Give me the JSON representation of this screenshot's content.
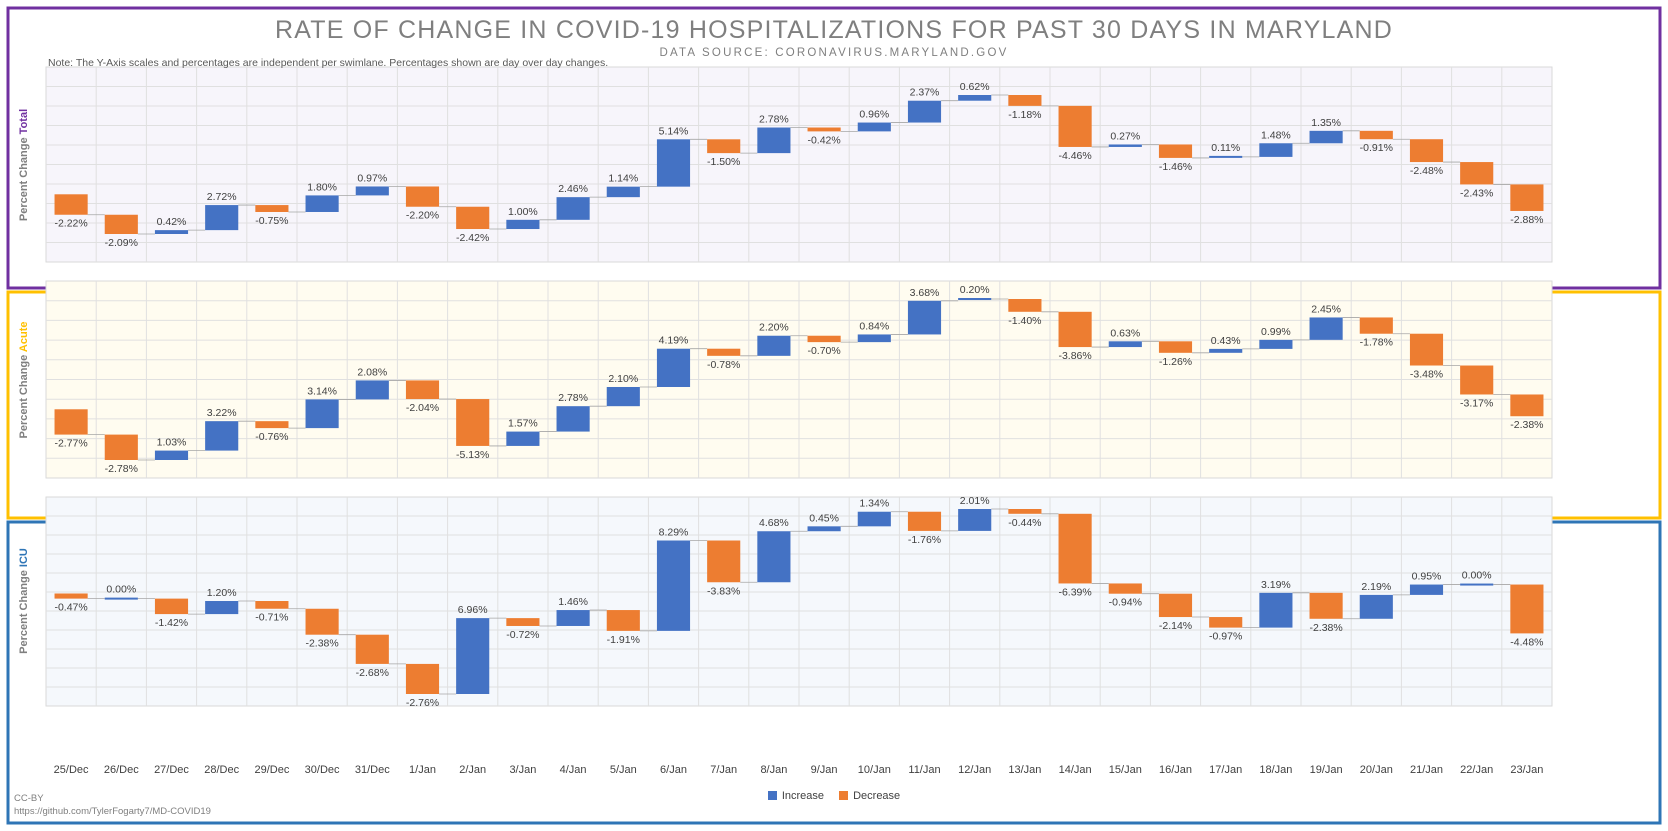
{
  "title": "RATE OF CHANGE IN COVID-19 HOSPITALIZATIONS FOR PAST 30 DAYS IN MARYLAND",
  "subtitle": "DATA SOURCE: CORONAVIRUS.MARYLAND.GOV",
  "note": "Note: The Y-Axis scales and percentages are independent per swimlane. Percentages shown are day over day changes.",
  "credit_line1": "CC-BY",
  "credit_line2": "https://github.com/TylerFogarty7/MD-COVID19",
  "colors": {
    "increase": "#4472c4",
    "decrease": "#ed7d31",
    "total_frame": "#7030a0",
    "acute_frame": "#ffc000",
    "icu_frame": "#2e75b6",
    "total_bg": "#f7f5fb",
    "acute_bg": "#fffcf0",
    "icu_bg": "#f5f8fc"
  },
  "legend": {
    "increase_label": "Increase",
    "decrease_label": "Decrease"
  },
  "chart_data": {
    "type": "waterfall",
    "title": "RATE OF CHANGE IN COVID-19 HOSPITALIZATIONS FOR PAST 30 DAYS IN MARYLAND",
    "categories": [
      "25/Dec",
      "26/Dec",
      "27/Dec",
      "28/Dec",
      "29/Dec",
      "30/Dec",
      "31/Dec",
      "1/Jan",
      "2/Jan",
      "3/Jan",
      "4/Jan",
      "5/Jan",
      "6/Jan",
      "7/Jan",
      "8/Jan",
      "9/Jan",
      "10/Jan",
      "11/Jan",
      "12/Jan",
      "13/Jan",
      "14/Jan",
      "15/Jan",
      "16/Jan",
      "17/Jan",
      "18/Jan",
      "19/Jan",
      "20/Jan",
      "21/Jan",
      "22/Jan",
      "23/Jan"
    ],
    "grid": true,
    "legend_position": "bottom-center",
    "panels": [
      {
        "name": "Total",
        "ylabel_prefix": "Percent Change",
        "ylabel_highlight": "Total",
        "values": [
          -2.22,
          -2.09,
          0.42,
          2.72,
          -0.75,
          1.8,
          0.97,
          -2.2,
          -2.42,
          1.0,
          2.46,
          1.14,
          5.14,
          -1.5,
          2.78,
          -0.42,
          0.96,
          2.37,
          0.62,
          -1.18,
          -4.46,
          0.27,
          -1.46,
          0.11,
          1.48,
          1.35,
          -0.91,
          -2.48,
          -2.43,
          -2.88
        ],
        "labels": [
          "-2.22%",
          "-2.09%",
          "0.42%",
          "2.72%",
          "-0.75%",
          "1.80%",
          "0.97%",
          "-2.20%",
          "-2.42%",
          "1.00%",
          "2.46%",
          "1.14%",
          "5.14%",
          "-1.50%",
          "2.78%",
          "-0.42%",
          "0.96%",
          "2.37%",
          "0.62%",
          "-1.18%",
          "-4.46%",
          "0.27%",
          "-1.46%",
          "0.11%",
          "1.48%",
          "1.35%",
          "-0.91%",
          "-2.48%",
          "-2.43%",
          "-2.88%"
        ]
      },
      {
        "name": "Acute",
        "ylabel_prefix": "Percent Change",
        "ylabel_highlight": "Acute",
        "values": [
          -2.77,
          -2.78,
          1.03,
          3.22,
          -0.76,
          3.14,
          2.08,
          -2.04,
          -5.13,
          1.57,
          2.78,
          2.1,
          4.19,
          -0.78,
          2.2,
          -0.7,
          0.84,
          3.68,
          0.2,
          -1.4,
          -3.86,
          0.63,
          -1.26,
          0.43,
          0.99,
          2.45,
          -1.78,
          -3.48,
          -3.17,
          -2.38
        ],
        "labels": [
          "-2.77%",
          "-2.78%",
          "1.03%",
          "3.22%",
          "-0.76%",
          "3.14%",
          "2.08%",
          "-2.04%",
          "-5.13%",
          "1.57%",
          "2.78%",
          "2.10%",
          "4.19%",
          "-0.78%",
          "2.20%",
          "-0.70%",
          "0.84%",
          "3.68%",
          "0.20%",
          "-1.40%",
          "-3.86%",
          "0.63%",
          "-1.26%",
          "0.43%",
          "0.99%",
          "2.45%",
          "-1.78%",
          "-3.48%",
          "-3.17%",
          "-2.38%"
        ]
      },
      {
        "name": "ICU",
        "ylabel_prefix": "Percent Change",
        "ylabel_highlight": "ICU",
        "values": [
          -0.47,
          0.0,
          -1.42,
          1.2,
          -0.71,
          -2.38,
          -2.68,
          -2.76,
          6.96,
          -0.72,
          1.46,
          -1.91,
          8.29,
          -3.83,
          4.68,
          0.45,
          1.34,
          -1.76,
          2.01,
          -0.44,
          -6.39,
          -0.94,
          -2.14,
          -0.97,
          3.19,
          -2.38,
          2.19,
          0.95,
          0.0,
          -4.48
        ],
        "labels": [
          "-0.47%",
          "0.00%",
          "-1.42%",
          "1.20%",
          "-0.71%",
          "-2.38%",
          "-2.68%",
          "-2.76%",
          "6.96%",
          "-0.72%",
          "1.46%",
          "-1.91%",
          "8.29%",
          "-3.83%",
          "4.68%",
          "0.45%",
          "1.34%",
          "-1.76%",
          "2.01%",
          "-0.44%",
          "-6.39%",
          "-0.94%",
          "-2.14%",
          "-0.97%",
          "3.19%",
          "-2.38%",
          "2.19%",
          "0.95%",
          "0.00%",
          "-4.48%"
        ]
      }
    ]
  }
}
